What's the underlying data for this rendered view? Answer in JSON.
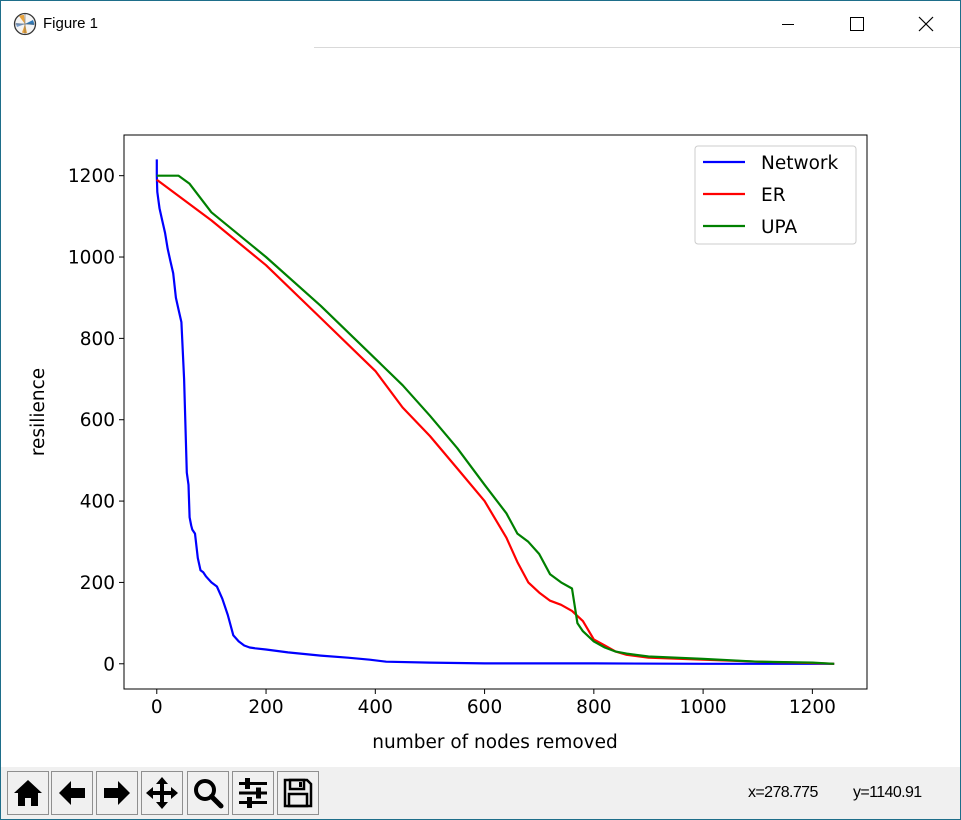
{
  "window": {
    "title": "Figure 1",
    "controls": [
      "minimize",
      "maximize",
      "close"
    ]
  },
  "toolbar": {
    "tools": [
      {
        "name": "home-icon",
        "label": "Home"
      },
      {
        "name": "back-icon",
        "label": "Back"
      },
      {
        "name": "forward-icon",
        "label": "Forward"
      },
      {
        "name": "pan-icon",
        "label": "Pan"
      },
      {
        "name": "zoom-icon",
        "label": "Zoom"
      },
      {
        "name": "subplots-icon",
        "label": "Configure subplots"
      },
      {
        "name": "save-icon",
        "label": "Save"
      }
    ],
    "x_readout": "x=278.775",
    "y_readout": "y=1140.91"
  },
  "chart_data": {
    "type": "line",
    "xlabel": "number of nodes removed",
    "ylabel": "resilience",
    "xlim": [
      -60,
      1300
    ],
    "ylim": [
      -62,
      1300
    ],
    "xticks": [
      0,
      200,
      400,
      600,
      800,
      1000,
      1200
    ],
    "yticks": [
      0,
      200,
      400,
      600,
      800,
      1000,
      1200
    ],
    "legend_position": "top-right",
    "grid": false,
    "series": [
      {
        "name": "Network",
        "color": "#0000ff",
        "x": [
          0,
          0,
          1,
          3,
          5,
          10,
          15,
          20,
          25,
          30,
          35,
          40,
          45,
          50,
          55,
          58,
          60,
          63,
          65,
          70,
          75,
          80,
          85,
          90,
          100,
          110,
          120,
          130,
          140,
          150,
          160,
          170,
          180,
          200,
          240,
          300,
          350,
          390,
          420,
          500,
          600,
          800,
          1000,
          1100,
          1200,
          1240
        ],
        "y": [
          1240,
          1200,
          1160,
          1140,
          1120,
          1090,
          1060,
          1020,
          990,
          960,
          900,
          870,
          840,
          700,
          470,
          440,
          360,
          340,
          330,
          320,
          260,
          230,
          225,
          215,
          200,
          190,
          160,
          120,
          70,
          55,
          45,
          40,
          38,
          35,
          28,
          20,
          15,
          10,
          5,
          3,
          1,
          1,
          0,
          0,
          0,
          0
        ]
      },
      {
        "name": "ER",
        "color": "#ff0000",
        "x": [
          0,
          100,
          200,
          300,
          400,
          450,
          500,
          550,
          600,
          640,
          660,
          680,
          700,
          720,
          740,
          760,
          780,
          800,
          820,
          840,
          860,
          900,
          1000,
          1100,
          1200,
          1240
        ],
        "y": [
          1190,
          1090,
          980,
          850,
          720,
          630,
          560,
          480,
          400,
          310,
          250,
          200,
          175,
          155,
          145,
          130,
          105,
          60,
          45,
          30,
          22,
          15,
          10,
          5,
          2,
          0
        ]
      },
      {
        "name": "UPA",
        "color": "#008000",
        "x": [
          0,
          40,
          60,
          100,
          200,
          300,
          400,
          450,
          500,
          550,
          600,
          640,
          660,
          680,
          700,
          720,
          740,
          760,
          770,
          780,
          800,
          820,
          840,
          860,
          900,
          1000,
          1100,
          1200,
          1240
        ],
        "y": [
          1200,
          1200,
          1180,
          1110,
          1000,
          880,
          750,
          685,
          610,
          530,
          440,
          370,
          320,
          300,
          270,
          220,
          200,
          185,
          100,
          80,
          55,
          40,
          30,
          25,
          18,
          12,
          5,
          3,
          0
        ]
      }
    ]
  }
}
